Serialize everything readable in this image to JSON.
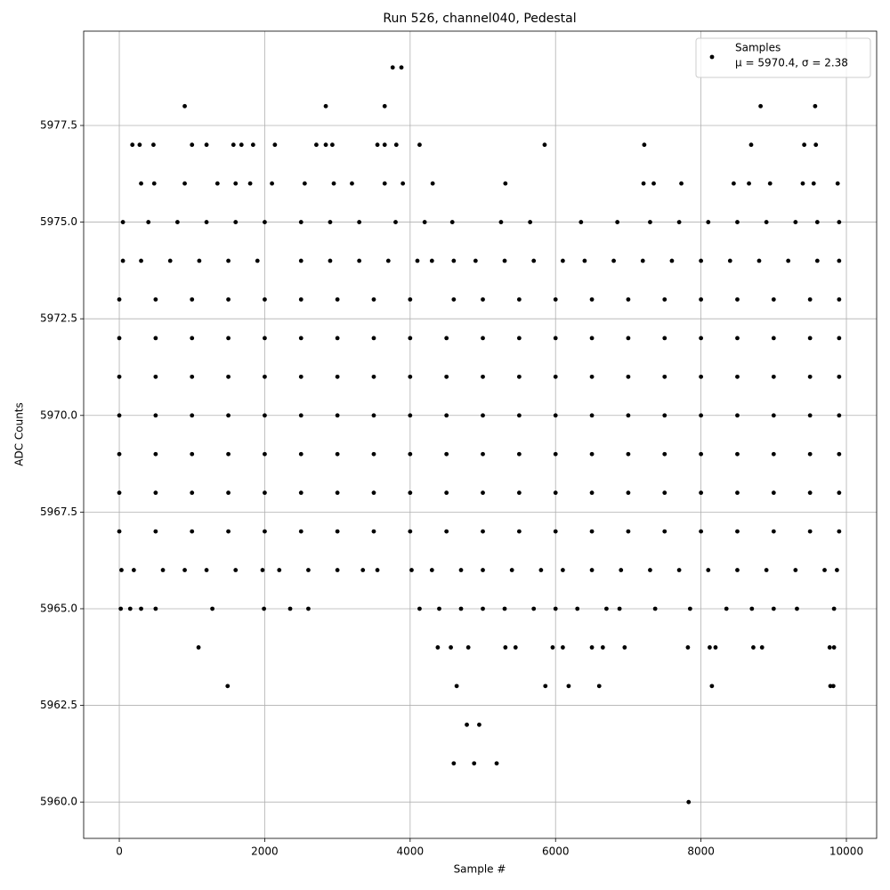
{
  "chart_data": {
    "type": "scatter",
    "title": "Run 526, channel040, Pedestal",
    "xlabel": "Sample #",
    "ylabel": "ADC Counts",
    "xlim": [
      -490,
      10416
    ],
    "ylim": [
      5959.06,
      5979.94
    ],
    "xticks": [
      0,
      2000,
      4000,
      6000,
      8000,
      10000
    ],
    "yticks": [
      {
        "value": 5960,
        "label": "5960.0"
      },
      5962.5,
      {
        "value": 5965,
        "label": "5965.0"
      },
      5967.5,
      {
        "value": 5970,
        "label": "5970.0"
      },
      5972.5,
      {
        "value": 5975,
        "label": "5975.0"
      },
      5977.5
    ],
    "grid": true,
    "legend": "upper right",
    "legend_note": "μ = 5970.4, σ = 2.38",
    "series": [
      {
        "name": "Samples",
        "color": "#000000",
        "x": [
          0,
          500,
          1000,
          1500,
          2000,
          2500,
          3000,
          3500,
          4000,
          4500,
          5000,
          5500,
          6000,
          6500,
          7000,
          7500,
          8000,
          8500,
          9000,
          9500,
          9900,
          0,
          500,
          1000,
          1500,
          2000,
          2500,
          3000,
          3500,
          4000,
          4500,
          5000,
          5500,
          6000,
          6500,
          7000,
          7500,
          8000,
          8500,
          9000,
          9500,
          9900,
          0,
          500,
          1000,
          1500,
          2000,
          2500,
          3000,
          3500,
          4000,
          4500,
          5000,
          5500,
          6000,
          6500,
          7000,
          7500,
          8000,
          8500,
          9000,
          9500,
          9900,
          0,
          500,
          1000,
          1500,
          2000,
          2500,
          3000,
          3500,
          4000,
          4500,
          5000,
          5500,
          6000,
          6500,
          7000,
          7500,
          8000,
          8500,
          9000,
          9500,
          9900,
          0,
          500,
          1000,
          1500,
          2000,
          2500,
          3000,
          3500,
          4000,
          4500,
          5000,
          5500,
          6000,
          6500,
          7000,
          7500,
          8000,
          8500,
          9000,
          9500,
          9900,
          0,
          500,
          1000,
          1500,
          2000,
          2500,
          3000,
          3500,
          4000,
          4500,
          5000,
          5500,
          6000,
          6500,
          7000,
          7500,
          8000,
          8500,
          9000,
          9500,
          9900,
          0,
          500,
          1000,
          1500,
          2000,
          2500,
          3000,
          3500,
          4000,
          4600,
          5000,
          5500,
          6000,
          6500,
          7000,
          7500,
          8000,
          8500,
          9000,
          9500,
          9900,
          50,
          300,
          700,
          1100,
          1500,
          1900,
          2500,
          2900,
          3300,
          3700,
          4100,
          4300,
          4600,
          4900,
          5300,
          5700,
          6100,
          6400,
          6800,
          7200,
          7600,
          8000,
          8400,
          8800,
          9200,
          9600,
          9900,
          50,
          400,
          800,
          1200,
          1600,
          2000,
          2500,
          2900,
          3300,
          3800,
          4200,
          4580,
          5250,
          5650,
          6350,
          6850,
          7300,
          7700,
          8100,
          8500,
          8900,
          9300,
          9600,
          9900,
          30,
          200,
          600,
          900,
          1200,
          1600,
          1970,
          2200,
          2600,
          3000,
          3350,
          3550,
          4020,
          4300,
          4700,
          5000,
          5400,
          5800,
          6100,
          6500,
          6900,
          7300,
          7700,
          8100,
          8500,
          8900,
          9300,
          9700,
          9870,
          20,
          150,
          300,
          500,
          1280,
          1990,
          2350,
          2600,
          4130,
          4400,
          4700,
          5000,
          5300,
          5700,
          6000,
          6300,
          6700,
          6880,
          7370,
          7850,
          8350,
          8700,
          9000,
          9320,
          9830,
          300,
          480,
          900,
          1350,
          1600,
          1800,
          2100,
          2550,
          2950,
          3200,
          3650,
          3900,
          4310,
          5310,
          7210,
          7350,
          7730,
          8450,
          8660,
          8950,
          9400,
          9550,
          9880,
          180,
          280,
          470,
          1000,
          1200,
          1570,
          1680,
          1840,
          2140,
          2710,
          2840,
          2930,
          3550,
          3650,
          3810,
          4130,
          5850,
          7220,
          8690,
          9420,
          9580,
          1090,
          4380,
          4560,
          4800,
          5310,
          5450,
          5960,
          6100,
          6500,
          6650,
          6950,
          7820,
          8120,
          8200,
          8720,
          8840,
          9770,
          9830,
          1490,
          4640,
          5860,
          6180,
          6600,
          8150,
          9780,
          9820,
          4780,
          4950,
          4600,
          4880,
          5190,
          7830,
          900,
          2840,
          3650,
          8820,
          9570,
          3760,
          3880
        ],
        "y": [
          5970,
          5970,
          5970,
          5970,
          5970,
          5970,
          5970,
          5970,
          5970,
          5970,
          5970,
          5970,
          5970,
          5970,
          5970,
          5970,
          5970,
          5970,
          5970,
          5970,
          5970,
          5971,
          5971,
          5971,
          5971,
          5971,
          5971,
          5971,
          5971,
          5971,
          5971,
          5971,
          5971,
          5971,
          5971,
          5971,
          5971,
          5971,
          5971,
          5971,
          5971,
          5971,
          5972,
          5972,
          5972,
          5972,
          5972,
          5972,
          5972,
          5972,
          5972,
          5972,
          5972,
          5972,
          5972,
          5972,
          5972,
          5972,
          5972,
          5972,
          5972,
          5972,
          5972,
          5969,
          5969,
          5969,
          5969,
          5969,
          5969,
          5969,
          5969,
          5969,
          5969,
          5969,
          5969,
          5969,
          5969,
          5969,
          5969,
          5969,
          5969,
          5969,
          5969,
          5969,
          5968,
          5968,
          5968,
          5968,
          5968,
          5968,
          5968,
          5968,
          5968,
          5968,
          5968,
          5968,
          5968,
          5968,
          5968,
          5968,
          5968,
          5968,
          5968,
          5968,
          5968,
          5967,
          5967,
          5967,
          5967,
          5967,
          5967,
          5967,
          5967,
          5967,
          5967,
          5967,
          5967,
          5967,
          5967,
          5967,
          5967,
          5967,
          5967,
          5967,
          5967,
          5967,
          5973,
          5973,
          5973,
          5973,
          5973,
          5973,
          5973,
          5973,
          5973,
          5973,
          5973,
          5973,
          5973,
          5973,
          5973,
          5973,
          5973,
          5973,
          5973,
          5973,
          5973,
          5974,
          5974,
          5974,
          5974,
          5974,
          5974,
          5974,
          5974,
          5974,
          5974,
          5974,
          5974,
          5974,
          5974,
          5974,
          5974,
          5974,
          5974,
          5974,
          5974,
          5974,
          5974,
          5974,
          5974,
          5974,
          5974,
          5974,
          5975,
          5975,
          5975,
          5975,
          5975,
          5975,
          5975,
          5975,
          5975,
          5975,
          5975,
          5975,
          5975,
          5975,
          5975,
          5975,
          5975,
          5975,
          5975,
          5975,
          5975,
          5975,
          5975,
          5975,
          5966,
          5966,
          5966,
          5966,
          5966,
          5966,
          5966,
          5966,
          5966,
          5966,
          5966,
          5966,
          5966,
          5966,
          5966,
          5966,
          5966,
          5966,
          5966,
          5966,
          5966,
          5966,
          5966,
          5966,
          5966,
          5966,
          5966,
          5966,
          5966,
          5965,
          5965,
          5965,
          5965,
          5965,
          5965,
          5965,
          5965,
          5965,
          5965,
          5965,
          5965,
          5965,
          5965,
          5965,
          5965,
          5965,
          5965,
          5965,
          5965,
          5965,
          5965,
          5965,
          5965,
          5965,
          5976,
          5976,
          5976,
          5976,
          5976,
          5976,
          5976,
          5976,
          5976,
          5976,
          5976,
          5976,
          5976,
          5976,
          5976,
          5976,
          5976,
          5976,
          5976,
          5976,
          5976,
          5976,
          5976,
          5977,
          5977,
          5977,
          5977,
          5977,
          5977,
          5977,
          5977,
          5977,
          5977,
          5977,
          5977,
          5977,
          5977,
          5977,
          5977,
          5977,
          5977,
          5977,
          5977,
          5977,
          5964,
          5964,
          5964,
          5964,
          5964,
          5964,
          5964,
          5964,
          5964,
          5964,
          5964,
          5964,
          5964,
          5964,
          5964,
          5964,
          5964,
          5964,
          5963,
          5963,
          5963,
          5963,
          5963,
          5963,
          5963,
          5963,
          5962,
          5962,
          5961,
          5961,
          5961,
          5960,
          5978,
          5978,
          5978,
          5978,
          5978,
          5979,
          5979
        ]
      }
    ]
  }
}
